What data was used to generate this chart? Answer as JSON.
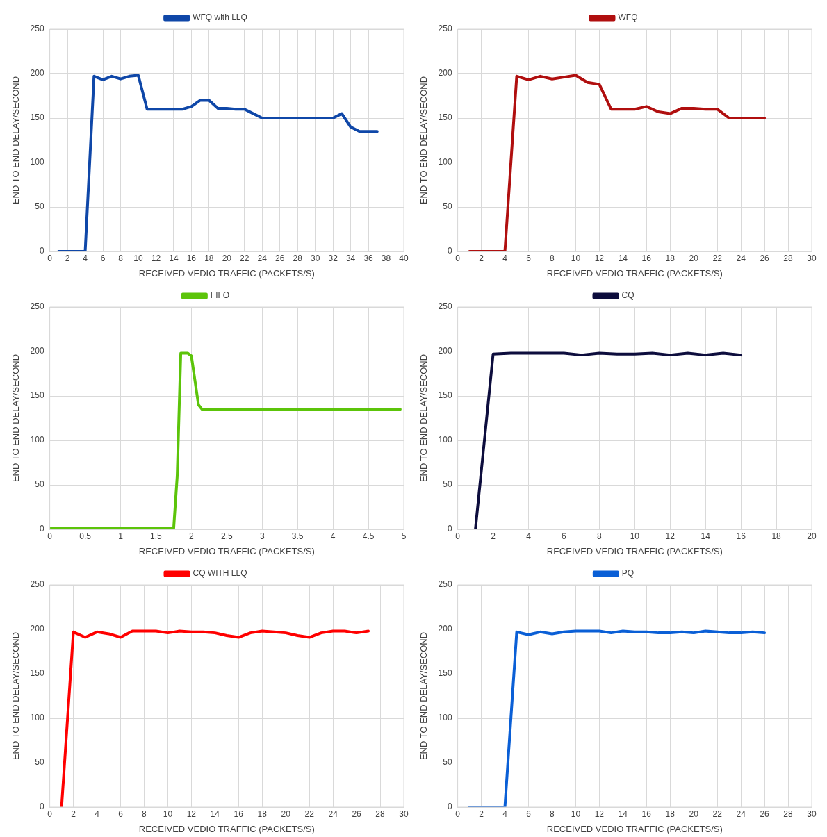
{
  "chart_data": [
    {
      "type": "line",
      "xlabel": "RECEIVED VEDIO TRAFFIC (PACKETS/S)",
      "ylabel": "END TO END DELAY/SECOND",
      "xlim": [
        0,
        40
      ],
      "xticks": [
        0,
        2,
        4,
        6,
        8,
        10,
        12,
        14,
        16,
        18,
        20,
        22,
        24,
        26,
        28,
        30,
        32,
        34,
        36,
        38,
        40
      ],
      "ylim": [
        0,
        250
      ],
      "yticks": [
        0,
        50,
        100,
        150,
        200,
        250
      ],
      "grid": true,
      "legend": "top",
      "line_style": "solid",
      "x": [
        1,
        2,
        3,
        4,
        5,
        6,
        7,
        8,
        9,
        10,
        11,
        12,
        13,
        14,
        15,
        16,
        17,
        18,
        19,
        20,
        21,
        22,
        23,
        24,
        25,
        26,
        27,
        28,
        29,
        30,
        31,
        32,
        33,
        34,
        35,
        36,
        37
      ],
      "series": [
        {
          "name": "WFQ with LLQ",
          "color": "#0f47a8",
          "values": [
            0,
            0,
            0,
            0,
            197,
            193,
            197,
            194,
            197,
            198,
            160,
            160,
            160,
            160,
            160,
            163,
            170,
            170,
            161,
            161,
            160,
            160,
            155,
            150,
            150,
            150,
            150,
            150,
            150,
            150,
            150,
            150,
            155,
            140,
            135,
            135,
            135
          ]
        }
      ]
    },
    {
      "type": "line",
      "xlabel": "RECEIVED VEDIO TRAFFIC (PACKETS/S)",
      "ylabel": "END TO END DELAY/SECOND",
      "xlim": [
        0,
        30
      ],
      "xticks": [
        0,
        2,
        4,
        6,
        8,
        10,
        12,
        14,
        16,
        18,
        20,
        22,
        24,
        26,
        28,
        30
      ],
      "ylim": [
        0,
        250
      ],
      "yticks": [
        0,
        50,
        100,
        150,
        200,
        250
      ],
      "grid": true,
      "legend": "top",
      "line_style": "solid",
      "x": [
        1,
        2,
        3,
        4,
        5,
        6,
        7,
        8,
        9,
        10,
        11,
        12,
        13,
        14,
        15,
        16,
        17,
        18,
        19,
        20,
        21,
        22,
        23,
        24,
        25,
        26
      ],
      "series": [
        {
          "name": "WFQ",
          "color": "#b00f0f",
          "values": [
            0,
            0,
            0,
            0,
            197,
            193,
            197,
            194,
            196,
            198,
            190,
            188,
            160,
            160,
            160,
            163,
            157,
            155,
            161,
            161,
            160,
            160,
            150,
            150,
            150,
            150
          ]
        }
      ]
    },
    {
      "type": "line",
      "xlabel": "RECEIVED VEDIO TRAFFIC (PACKETS/S)",
      "ylabel": "END TO END DELAY/SECOND",
      "xlim": [
        0,
        5
      ],
      "xticks": [
        0,
        0.5,
        1,
        1.5,
        2,
        2.5,
        3,
        3.5,
        4,
        4.5,
        5
      ],
      "ylim": [
        0,
        250
      ],
      "yticks": [
        0,
        50,
        100,
        150,
        200,
        250
      ],
      "grid": true,
      "legend": "top",
      "line_style": "solid",
      "x": [
        0,
        1.75,
        1.8,
        1.85,
        1.95,
        2,
        2.1,
        2.15,
        4.95
      ],
      "series": [
        {
          "name": "FIFO",
          "color": "#5cc40a",
          "values": [
            1,
            1,
            60,
            198,
            198,
            195,
            140,
            135,
            135
          ]
        }
      ]
    },
    {
      "type": "line",
      "xlabel": "RECEIVED VEDIO TRAFFIC (PACKETS/S)",
      "ylabel": "END TO END DELAY/SECOND",
      "xlim": [
        0,
        20
      ],
      "xticks": [
        0,
        2,
        4,
        6,
        8,
        10,
        12,
        14,
        16,
        18,
        20
      ],
      "ylim": [
        0,
        250
      ],
      "yticks": [
        0,
        50,
        100,
        150,
        200,
        250
      ],
      "grid": true,
      "legend": "top",
      "line_style": "solid",
      "x": [
        1,
        2,
        3,
        4,
        5,
        6,
        7,
        8,
        9,
        10,
        11,
        12,
        13,
        14,
        15,
        16
      ],
      "series": [
        {
          "name": "CQ",
          "color": "#0d0d3d",
          "values": [
            0,
            197,
            198,
            198,
            198,
            198,
            196,
            198,
            197,
            197,
            198,
            196,
            198,
            196,
            198,
            196
          ]
        }
      ]
    },
    {
      "type": "line",
      "xlabel": "RECEIVED VEDIO TRAFFIC (PACKETS/S)",
      "ylabel": "END TO END DELAY/SECOND",
      "xlim": [
        0,
        30
      ],
      "xticks": [
        0,
        2,
        4,
        6,
        8,
        10,
        12,
        14,
        16,
        18,
        20,
        22,
        24,
        26,
        28,
        30
      ],
      "ylim": [
        0,
        250
      ],
      "yticks": [
        0,
        50,
        100,
        150,
        200,
        250
      ],
      "grid": true,
      "legend": "top",
      "line_style": "solid",
      "x": [
        1,
        2,
        3,
        4,
        5,
        6,
        7,
        8,
        9,
        10,
        11,
        12,
        13,
        14,
        15,
        16,
        17,
        18,
        19,
        20,
        21,
        22,
        23,
        24,
        25,
        26,
        27
      ],
      "series": [
        {
          "name": "CQ WITH LLQ",
          "color": "#ff0000",
          "values": [
            0,
            197,
            191,
            197,
            195,
            191,
            198,
            198,
            198,
            196,
            198,
            197,
            197,
            196,
            193,
            191,
            196,
            198,
            197,
            196,
            193,
            191,
            196,
            198,
            198,
            196,
            198
          ]
        }
      ]
    },
    {
      "type": "line",
      "xlabel": "RECEIVED VEDIO TRAFFIC (PACKETS/S)",
      "ylabel": "END TO END DELAY/SECOND",
      "xlim": [
        0,
        30
      ],
      "xticks": [
        0,
        2,
        4,
        6,
        8,
        10,
        12,
        14,
        16,
        18,
        20,
        22,
        24,
        26,
        28,
        30
      ],
      "ylim": [
        0,
        250
      ],
      "yticks": [
        0,
        50,
        100,
        150,
        200,
        250
      ],
      "grid": true,
      "legend": "top",
      "line_style": "solid",
      "x": [
        1,
        2,
        3,
        4,
        5,
        6,
        7,
        8,
        9,
        10,
        11,
        12,
        13,
        14,
        15,
        16,
        17,
        18,
        19,
        20,
        21,
        22,
        23,
        24,
        25,
        26
      ],
      "series": [
        {
          "name": "PQ",
          "color": "#0a5fd6",
          "values": [
            0,
            0,
            0,
            0,
            197,
            194,
            197,
            195,
            197,
            198,
            198,
            198,
            196,
            198,
            197,
            197,
            196,
            196,
            197,
            196,
            198,
            197,
            196,
            196,
            197,
            196
          ]
        }
      ]
    }
  ]
}
